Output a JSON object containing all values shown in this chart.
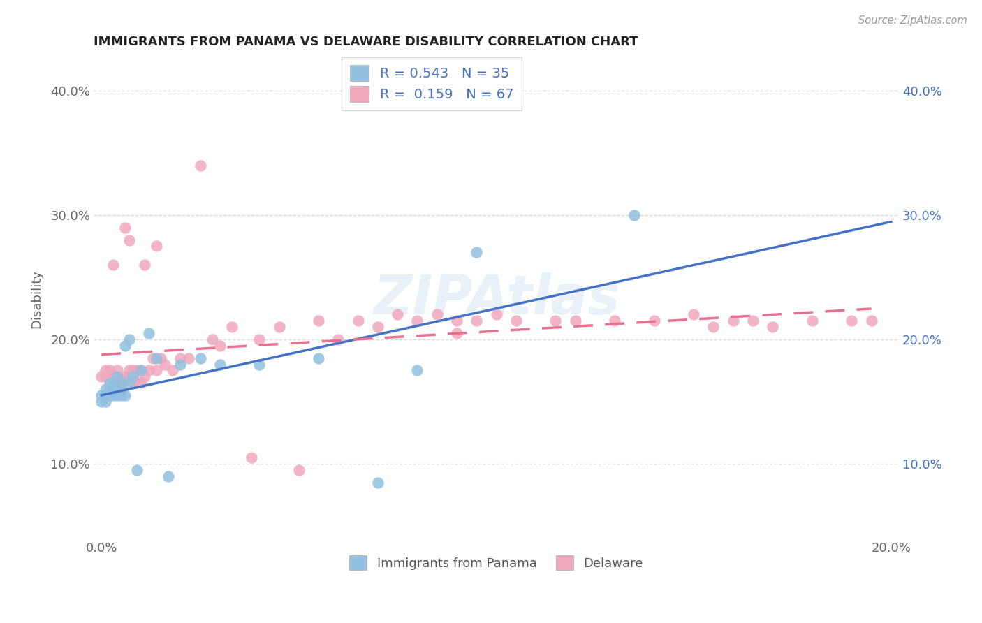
{
  "title": "IMMIGRANTS FROM PANAMA VS DELAWARE DISABILITY CORRELATION CHART",
  "source": "Source: ZipAtlas.com",
  "ylabel": "Disability",
  "xlabel_blue": "Immigrants from Panama",
  "xlabel_pink": "Delaware",
  "xlim": [
    -0.002,
    0.202
  ],
  "ylim": [
    0.04,
    0.425
  ],
  "yticks": [
    0.1,
    0.2,
    0.3,
    0.4
  ],
  "ytick_labels": [
    "10.0%",
    "20.0%",
    "30.0%",
    "40.0%"
  ],
  "xtick_positions": [
    0.0,
    0.2
  ],
  "xtick_labels": [
    "0.0%",
    "20.0%"
  ],
  "R_blue": 0.543,
  "N_blue": 35,
  "R_pink": 0.159,
  "N_pink": 67,
  "blue_color": "#92c0e0",
  "pink_color": "#f0a8bb",
  "blue_line_color": "#4472c4",
  "pink_line_color": "#e87090",
  "watermark": "ZIPAtlas",
  "blue_scatter_x": [
    0.0,
    0.0,
    0.001,
    0.001,
    0.001,
    0.002,
    0.002,
    0.003,
    0.003,
    0.003,
    0.004,
    0.004,
    0.004,
    0.005,
    0.005,
    0.005,
    0.006,
    0.006,
    0.007,
    0.007,
    0.008,
    0.009,
    0.01,
    0.012,
    0.014,
    0.017,
    0.02,
    0.025,
    0.03,
    0.04,
    0.055,
    0.07,
    0.08,
    0.095,
    0.135
  ],
  "blue_scatter_y": [
    0.15,
    0.155,
    0.15,
    0.155,
    0.16,
    0.155,
    0.165,
    0.155,
    0.16,
    0.165,
    0.155,
    0.16,
    0.17,
    0.155,
    0.165,
    0.16,
    0.155,
    0.195,
    0.165,
    0.2,
    0.17,
    0.095,
    0.175,
    0.205,
    0.185,
    0.09,
    0.18,
    0.185,
    0.18,
    0.18,
    0.185,
    0.085,
    0.175,
    0.27,
    0.3
  ],
  "pink_scatter_x": [
    0.0,
    0.001,
    0.001,
    0.002,
    0.002,
    0.003,
    0.003,
    0.003,
    0.004,
    0.004,
    0.005,
    0.005,
    0.006,
    0.006,
    0.007,
    0.007,
    0.007,
    0.008,
    0.008,
    0.008,
    0.009,
    0.009,
    0.01,
    0.01,
    0.011,
    0.011,
    0.012,
    0.013,
    0.014,
    0.014,
    0.015,
    0.016,
    0.018,
    0.02,
    0.022,
    0.025,
    0.028,
    0.03,
    0.033,
    0.038,
    0.04,
    0.045,
    0.05,
    0.055,
    0.06,
    0.065,
    0.07,
    0.075,
    0.08,
    0.085,
    0.09,
    0.09,
    0.095,
    0.1,
    0.105,
    0.115,
    0.12,
    0.13,
    0.14,
    0.15,
    0.155,
    0.16,
    0.165,
    0.17,
    0.18,
    0.19,
    0.195
  ],
  "pink_scatter_y": [
    0.17,
    0.17,
    0.175,
    0.16,
    0.175,
    0.165,
    0.17,
    0.26,
    0.165,
    0.175,
    0.16,
    0.165,
    0.17,
    0.29,
    0.17,
    0.175,
    0.28,
    0.165,
    0.17,
    0.175,
    0.165,
    0.175,
    0.165,
    0.175,
    0.17,
    0.26,
    0.175,
    0.185,
    0.175,
    0.275,
    0.185,
    0.18,
    0.175,
    0.185,
    0.185,
    0.34,
    0.2,
    0.195,
    0.21,
    0.105,
    0.2,
    0.21,
    0.095,
    0.215,
    0.2,
    0.215,
    0.21,
    0.22,
    0.215,
    0.22,
    0.215,
    0.205,
    0.215,
    0.22,
    0.215,
    0.215,
    0.215,
    0.215,
    0.215,
    0.22,
    0.21,
    0.215,
    0.215,
    0.21,
    0.215,
    0.215,
    0.215
  ]
}
